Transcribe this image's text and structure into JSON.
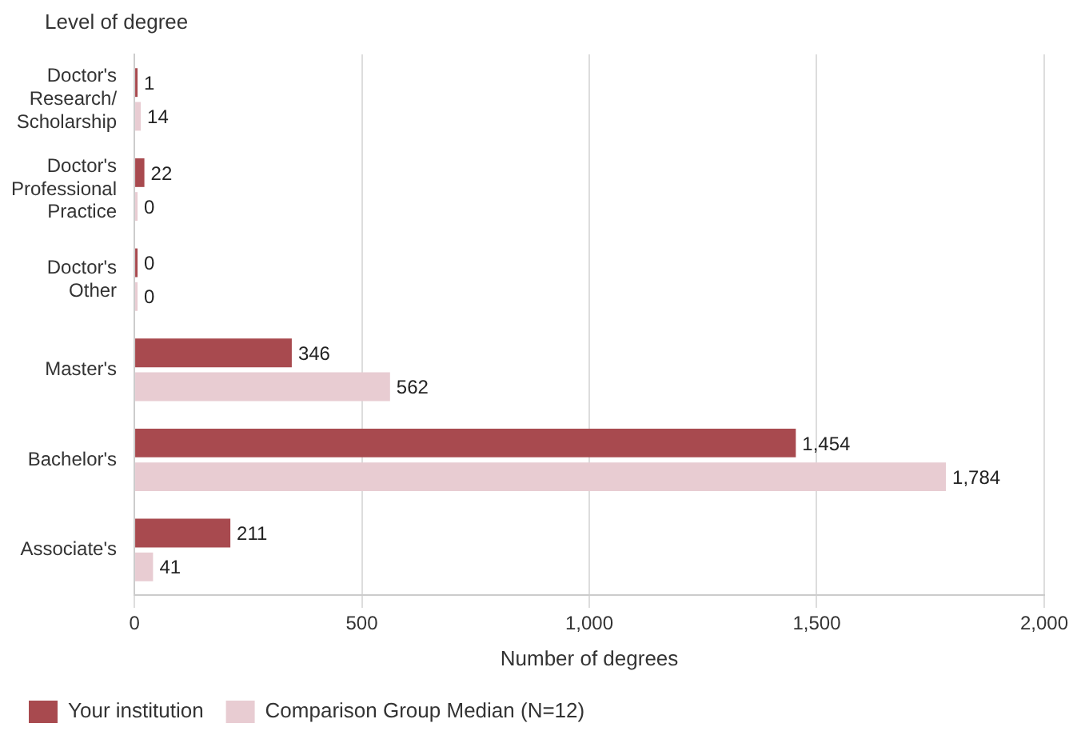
{
  "chart_data": {
    "type": "bar",
    "orientation": "horizontal",
    "ylabel": "Level of degree",
    "xlabel": "Number of degrees",
    "categories": [
      "Doctor's\nResearch/\nScholarship",
      "Doctor's\nProfessional\nPractice",
      "Doctor's\nOther",
      "Master's",
      "Bachelor's",
      "Associate's"
    ],
    "series": [
      {
        "name": "Your institution",
        "color": "#a84a4f",
        "values": [
          1,
          22,
          0,
          346,
          1454,
          211
        ],
        "value_labels": [
          "1",
          "22",
          "0",
          "346",
          "1,454",
          "211"
        ]
      },
      {
        "name": "Comparison Group Median (N=12)",
        "color": "#e8ccd2",
        "values": [
          14,
          0,
          0,
          562,
          1784,
          41
        ],
        "value_labels": [
          "14",
          "0",
          "0",
          "562",
          "1,784",
          "41"
        ]
      }
    ],
    "xlim": [
      0,
      2000
    ],
    "xticks": [
      {
        "value": 0,
        "label": "0"
      },
      {
        "value": 500,
        "label": "500"
      },
      {
        "value": 1000,
        "label": "1,000"
      },
      {
        "value": 1500,
        "label": "1,500"
      },
      {
        "value": 2000,
        "label": "2,000"
      }
    ],
    "grid": "x",
    "legend": "bottom left"
  }
}
